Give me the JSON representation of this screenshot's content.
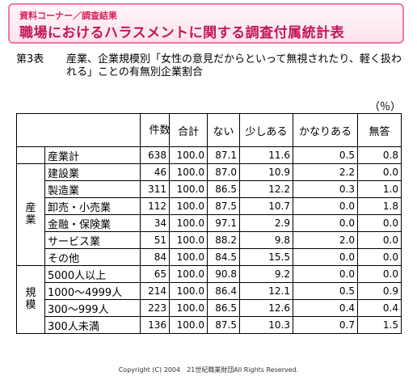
{
  "banner": {
    "section": "資料コーナー／調査結果",
    "title": "職場におけるハラスメントに関する調査付属統計表"
  },
  "caption": {
    "table_number": "第3表",
    "text": "産業、企業規模別「女性の意見だからといって無視されたり、軽く扱われる」ことの有無別企業割合"
  },
  "unit": "（％）",
  "table": {
    "headers": {
      "count": "件数",
      "total": "合計",
      "none": "ない",
      "some": "少しある",
      "fair": "かなりある",
      "no_answer": "無答"
    },
    "total_row": {
      "label": "産業計",
      "count": "638",
      "total": "100.0",
      "none": "87.1",
      "some": "11.6",
      "fair": "0.5",
      "no_answer": "0.8"
    },
    "groups": [
      {
        "label": "産業",
        "rows": [
          {
            "label": "建設業",
            "count": "46",
            "total": "100.0",
            "none": "87.0",
            "some": "10.9",
            "fair": "2.2",
            "no_answer": "0.0"
          },
          {
            "label": "製造業",
            "count": "311",
            "total": "100.0",
            "none": "86.5",
            "some": "12.2",
            "fair": "0.3",
            "no_answer": "1.0"
          },
          {
            "label": "卸売・小売業",
            "count": "112",
            "total": "100.0",
            "none": "87.5",
            "some": "10.7",
            "fair": "0.0",
            "no_answer": "1.8"
          },
          {
            "label": "金融・保険業",
            "count": "34",
            "total": "100.0",
            "none": "97.1",
            "some": "2.9",
            "fair": "0.0",
            "no_answer": "0.0"
          },
          {
            "label": "サービス業",
            "count": "51",
            "total": "100.0",
            "none": "88.2",
            "some": "9.8",
            "fair": "2.0",
            "no_answer": "0.0"
          },
          {
            "label": "その他",
            "count": "84",
            "total": "100.0",
            "none": "84.5",
            "some": "15.5",
            "fair": "0.0",
            "no_answer": "0.0"
          }
        ]
      },
      {
        "label": "規模",
        "rows": [
          {
            "label": "5000人以上",
            "count": "65",
            "total": "100.0",
            "none": "90.8",
            "some": "9.2",
            "fair": "0.0",
            "no_answer": "0.0"
          },
          {
            "label": "1000〜4999人",
            "count": "214",
            "total": "100.0",
            "none": "86.4",
            "some": "12.1",
            "fair": "0.5",
            "no_answer": "0.9"
          },
          {
            "label": "300〜999人",
            "count": "223",
            "total": "100.0",
            "none": "86.5",
            "some": "12.6",
            "fair": "0.4",
            "no_answer": "0.4"
          },
          {
            "label": "300人未満",
            "count": "136",
            "total": "100.0",
            "none": "87.5",
            "some": "10.3",
            "fair": "0.7",
            "no_answer": "1.5"
          }
        ]
      }
    ]
  },
  "footer": "Copyright (C) 2004　21世紀職業財団All Rights Reserved."
}
